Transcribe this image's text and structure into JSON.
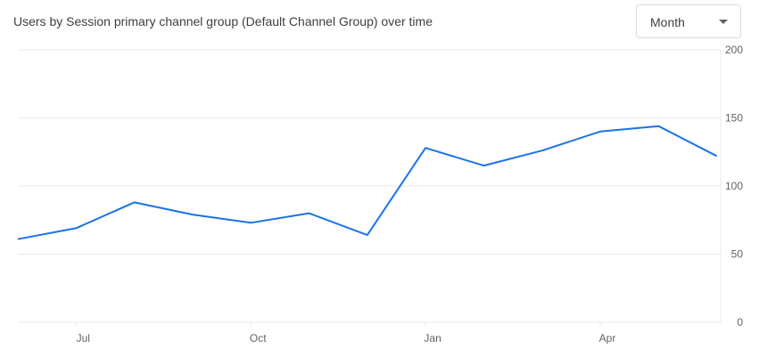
{
  "header": {
    "title": "Users by Session primary channel group (Default Channel Group) over time"
  },
  "period_select": {
    "value": "Month",
    "icon": "chevron-down-icon"
  },
  "colors": {
    "series": "#1a73e8",
    "grid": "#e8eaed",
    "axis_text": "#5f6368"
  },
  "chart_data": {
    "type": "line",
    "title": "Users by Session primary channel group (Default Channel Group) over time",
    "xlabel": "",
    "ylabel": "",
    "x_tick_labels": [
      "Jul",
      "Oct",
      "Jan",
      "Apr"
    ],
    "y_tick_labels": [
      "200",
      "150",
      "100",
      "50",
      "0"
    ],
    "ylim": [
      0,
      200
    ],
    "grid": true,
    "series": [
      {
        "x": [
          "Jun",
          "Jul",
          "Aug",
          "Sep",
          "Oct",
          "Nov",
          "Dec",
          "Jan",
          "Feb",
          "Mar",
          "Apr",
          "May",
          "Jun"
        ],
        "values": [
          61,
          69,
          88,
          79,
          73,
          80,
          64,
          128,
          115,
          126,
          140,
          144,
          122
        ]
      }
    ]
  }
}
